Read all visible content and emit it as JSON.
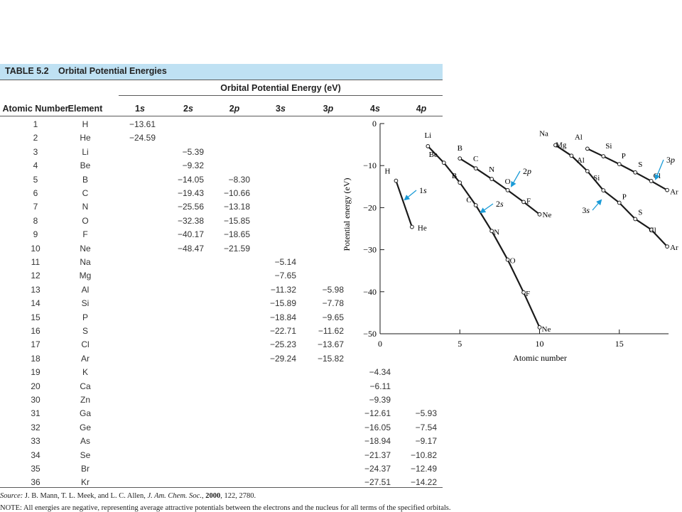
{
  "table": {
    "label": "TABLE 5.2",
    "title": "Orbital Potential Energies",
    "group_header": "Orbital Potential Energy (eV)",
    "col_atomic_number": "Atomic Number",
    "col_element": "Element",
    "orbitals": [
      {
        "n": "1",
        "l": "s"
      },
      {
        "n": "2",
        "l": "s"
      },
      {
        "n": "2",
        "l": "p"
      },
      {
        "n": "3",
        "l": "s"
      },
      {
        "n": "3",
        "l": "p"
      },
      {
        "n": "4",
        "l": "s"
      },
      {
        "n": "4",
        "l": "p"
      }
    ],
    "rows": [
      {
        "z": "1",
        "el": "H",
        "v": [
          "−13.61",
          "",
          "",
          "",
          "",
          "",
          ""
        ]
      },
      {
        "z": "2",
        "el": "He",
        "v": [
          "−24.59",
          "",
          "",
          "",
          "",
          "",
          ""
        ]
      },
      {
        "z": "3",
        "el": "Li",
        "v": [
          "",
          "−5.39",
          "",
          "",
          "",
          "",
          ""
        ]
      },
      {
        "z": "4",
        "el": "Be",
        "v": [
          "",
          "−9.32",
          "",
          "",
          "",
          "",
          ""
        ]
      },
      {
        "z": "5",
        "el": "B",
        "v": [
          "",
          "−14.05",
          "−8.30",
          "",
          "",
          "",
          ""
        ]
      },
      {
        "z": "6",
        "el": "C",
        "v": [
          "",
          "−19.43",
          "−10.66",
          "",
          "",
          "",
          ""
        ]
      },
      {
        "z": "7",
        "el": "N",
        "v": [
          "",
          "−25.56",
          "−13.18",
          "",
          "",
          "",
          ""
        ]
      },
      {
        "z": "8",
        "el": "O",
        "v": [
          "",
          "−32.38",
          "−15.85",
          "",
          "",
          "",
          ""
        ]
      },
      {
        "z": "9",
        "el": "F",
        "v": [
          "",
          "−40.17",
          "−18.65",
          "",
          "",
          "",
          ""
        ]
      },
      {
        "z": "10",
        "el": "Ne",
        "v": [
          "",
          "−48.47",
          "−21.59",
          "",
          "",
          "",
          ""
        ]
      },
      {
        "z": "11",
        "el": "Na",
        "v": [
          "",
          "",
          "",
          "−5.14",
          "",
          "",
          ""
        ]
      },
      {
        "z": "12",
        "el": "Mg",
        "v": [
          "",
          "",
          "",
          "−7.65",
          "",
          "",
          ""
        ]
      },
      {
        "z": "13",
        "el": "Al",
        "v": [
          "",
          "",
          "",
          "−11.32",
          "−5.98",
          "",
          ""
        ]
      },
      {
        "z": "14",
        "el": "Si",
        "v": [
          "",
          "",
          "",
          "−15.89",
          "−7.78",
          "",
          ""
        ]
      },
      {
        "z": "15",
        "el": "P",
        "v": [
          "",
          "",
          "",
          "−18.84",
          "−9.65",
          "",
          ""
        ]
      },
      {
        "z": "16",
        "el": "S",
        "v": [
          "",
          "",
          "",
          "−22.71",
          "−11.62",
          "",
          ""
        ]
      },
      {
        "z": "17",
        "el": "Cl",
        "v": [
          "",
          "",
          "",
          "−25.23",
          "−13.67",
          "",
          ""
        ]
      },
      {
        "z": "18",
        "el": "Ar",
        "v": [
          "",
          "",
          "",
          "−29.24",
          "−15.82",
          "",
          ""
        ]
      },
      {
        "z": "19",
        "el": "K",
        "v": [
          "",
          "",
          "",
          "",
          "",
          "−4.34",
          ""
        ]
      },
      {
        "z": "20",
        "el": "Ca",
        "v": [
          "",
          "",
          "",
          "",
          "",
          "−6.11",
          ""
        ]
      },
      {
        "z": "30",
        "el": "Zn",
        "v": [
          "",
          "",
          "",
          "",
          "",
          "−9.39",
          ""
        ]
      },
      {
        "z": "31",
        "el": "Ga",
        "v": [
          "",
          "",
          "",
          "",
          "",
          "−12.61",
          "−5.93"
        ]
      },
      {
        "z": "32",
        "el": "Ge",
        "v": [
          "",
          "",
          "",
          "",
          "",
          "−16.05",
          "−7.54"
        ]
      },
      {
        "z": "33",
        "el": "As",
        "v": [
          "",
          "",
          "",
          "",
          "",
          "−18.94",
          "−9.17"
        ]
      },
      {
        "z": "34",
        "el": "Se",
        "v": [
          "",
          "",
          "",
          "",
          "",
          "−21.37",
          "−10.82"
        ]
      },
      {
        "z": "35",
        "el": "Br",
        "v": [
          "",
          "",
          "",
          "",
          "",
          "−24.37",
          "−12.49"
        ]
      },
      {
        "z": "36",
        "el": "Kr",
        "v": [
          "",
          "",
          "",
          "",
          "",
          "−27.51",
          "−14.22"
        ]
      }
    ]
  },
  "footer": {
    "source_label": "Source:",
    "source_text": "J. B. Mann, T. L. Meek, and L. C. Allen,",
    "source_journal": "J. Am. Chem. Soc.",
    "source_year": "2000",
    "source_rest": ", 122, 2780.",
    "note": "NOTE: All energies are negative, representing average attractive potentials between the electrons and the nucleus for all terms of the specified orbitals."
  },
  "colors": {
    "header_band": "#bfe1f3",
    "callout_arrow": "#1a9bd7",
    "line": "#1a1a1a"
  },
  "chart_data": {
    "type": "line",
    "xlabel": "Atomic number",
    "ylabel": "Potential energy (eV)",
    "xlim": [
      0,
      18
    ],
    "ylim": [
      -50,
      0
    ],
    "xticks": [
      0,
      5,
      10,
      15
    ],
    "yticks": [
      0,
      -10,
      -20,
      -30,
      -40,
      -50
    ],
    "series": [
      {
        "name": "1s",
        "x": [
          1,
          2
        ],
        "y": [
          -13.61,
          -24.59
        ],
        "labels": [
          "H",
          "He"
        ]
      },
      {
        "name": "2s",
        "x": [
          3,
          4,
          5,
          6,
          7,
          8,
          9,
          10
        ],
        "y": [
          -5.39,
          -9.32,
          -14.05,
          -19.43,
          -25.56,
          -32.38,
          -40.17,
          -48.47
        ],
        "labels": [
          "Li",
          "Be",
          "B",
          "C",
          "N",
          "O",
          "F",
          "Ne"
        ]
      },
      {
        "name": "2p",
        "x": [
          5,
          6,
          7,
          8,
          9,
          10
        ],
        "y": [
          -8.3,
          -10.66,
          -13.18,
          -15.85,
          -18.65,
          -21.59
        ],
        "labels": [
          "B",
          "C",
          "N",
          "O",
          "F",
          "Ne"
        ]
      },
      {
        "name": "3s",
        "x": [
          11,
          12,
          13,
          14,
          15,
          16,
          17,
          18
        ],
        "y": [
          -5.14,
          -7.65,
          -11.32,
          -15.89,
          -18.84,
          -22.71,
          -25.23,
          -29.24
        ],
        "labels": [
          "Na",
          "Mg",
          "Al",
          "Si",
          "P",
          "S",
          "Cl",
          "Ar"
        ]
      },
      {
        "name": "3p",
        "x": [
          13,
          14,
          15,
          16,
          17,
          18
        ],
        "y": [
          -5.98,
          -7.78,
          -9.65,
          -11.62,
          -13.67,
          -15.82
        ],
        "labels": [
          "Al",
          "Si",
          "P",
          "S",
          "Cl",
          "Ar"
        ]
      }
    ]
  }
}
